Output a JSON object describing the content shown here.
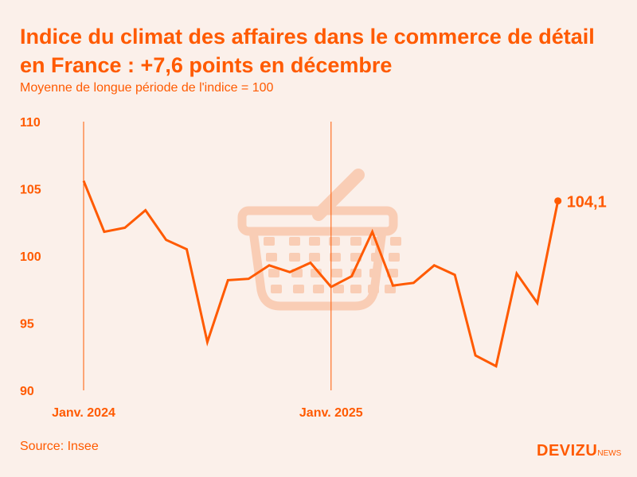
{
  "title": "Indice du climat des affaires dans le commerce de détail en France : +7,6 points en décembre",
  "subtitle": "Moyenne de longue période de l'indice = 100",
  "source": "Source: Insee",
  "logo": {
    "main": "DEVIZU",
    "suffix": "NEWS"
  },
  "colors": {
    "accent": "#ff5a00",
    "background": "#fbf0ea",
    "watermark": "#f9cdb5"
  },
  "watermark_icon": "shopping-basket-icon",
  "chart_data": {
    "type": "line",
    "title": "Indice du climat des affaires dans le commerce de détail en France : +7,6 points en décembre",
    "subtitle": "Moyenne de longue période de l'indice = 100",
    "x": [
      "2024-01",
      "2024-02",
      "2024-03",
      "2024-04",
      "2024-05",
      "2024-06",
      "2024-07",
      "2024-08",
      "2024-09",
      "2024-10",
      "2024-11",
      "2024-12",
      "2025-01",
      "2025-02",
      "2025-03",
      "2025-04",
      "2025-05",
      "2025-06",
      "2025-07",
      "2025-08",
      "2025-09",
      "2025-10",
      "2025-11",
      "2025-12"
    ],
    "values": [
      105.6,
      101.8,
      102.1,
      103.4,
      101.2,
      100.5,
      93.6,
      98.2,
      98.3,
      99.3,
      98.8,
      99.5,
      97.7,
      98.5,
      101.8,
      97.8,
      98.0,
      99.3,
      98.6,
      92.6,
      91.8,
      98.7,
      96.5,
      104.1
    ],
    "ylim": [
      90,
      110
    ],
    "yticks": [
      "90",
      "95",
      "100",
      "105",
      "110"
    ],
    "xticks": [
      {
        "label": "Janv. 2024",
        "x": "2024-01"
      },
      {
        "label": "Janv. 2025",
        "x": "2025-01"
      }
    ],
    "last_label": "104,1",
    "grid": false
  }
}
